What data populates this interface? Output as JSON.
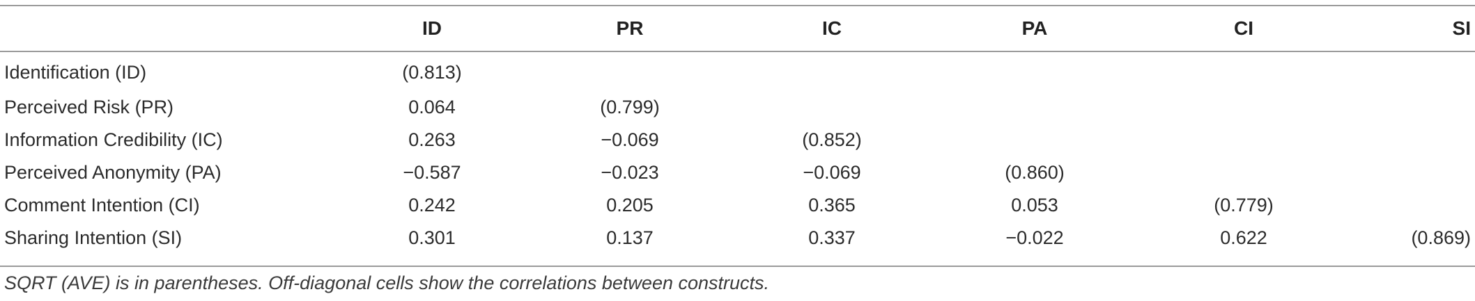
{
  "table": {
    "columns": [
      "",
      "ID",
      "PR",
      "IC",
      "PA",
      "CI",
      "SI"
    ],
    "rows": [
      {
        "label": "Identification (ID)",
        "cells": [
          "(0.813)",
          "",
          "",
          "",
          "",
          ""
        ]
      },
      {
        "label": "Perceived Risk (PR)",
        "cells": [
          "0.064",
          "(0.799)",
          "",
          "",
          "",
          ""
        ]
      },
      {
        "label": "Information Credibility (IC)",
        "cells": [
          "0.263",
          "−0.069",
          "(0.852)",
          "",
          "",
          ""
        ]
      },
      {
        "label": "Perceived Anonymity (PA)",
        "cells": [
          "−0.587",
          "−0.023",
          "−0.069",
          "(0.860)",
          "",
          ""
        ]
      },
      {
        "label": "Comment Intention (CI)",
        "cells": [
          "0.242",
          "0.205",
          "0.365",
          "0.053",
          "(0.779)",
          ""
        ]
      },
      {
        "label": "Sharing Intention (SI)",
        "cells": [
          "0.301",
          "0.137",
          "0.337",
          "−0.022",
          "0.622",
          "(0.869)"
        ]
      }
    ]
  },
  "footnote": "SQRT (AVE) is in parentheses. Off-diagonal cells show the correlations between constructs."
}
